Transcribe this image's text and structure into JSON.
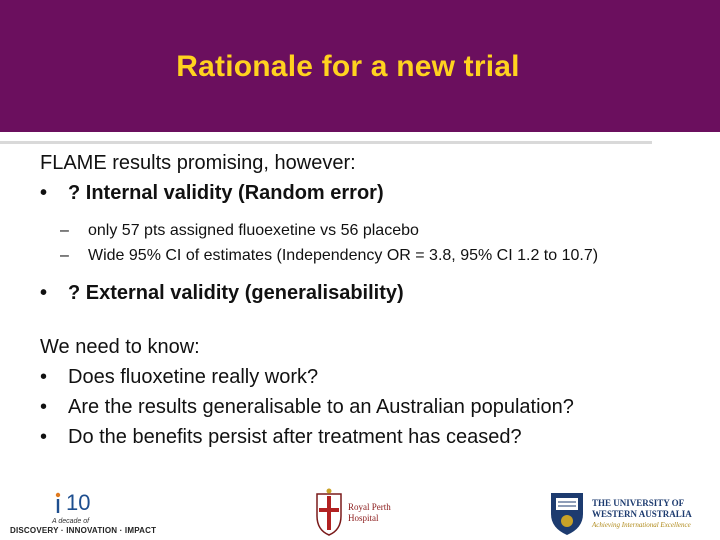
{
  "slide": {
    "title": "Rationale for a new trial",
    "colors": {
      "header_bg": "#6b0f5e",
      "title": "#ffd21f"
    },
    "intro": "FLAME results promising, however:",
    "bullet1": "? Internal validity (Random error)",
    "sub1": "only 57 pts assigned fluoexetine vs 56 placebo",
    "sub2": "Wide 95% CI of estimates (Independency OR = 3.8, 95% CI 1.2 to 10.7)",
    "bullet2": "? External validity (generalisability)",
    "need": "We need to know:",
    "q1": "Does fluoxetine really work?",
    "q2": "Are the results generalisable to an Australian population?",
    "q3": "Do the benefits persist after treatment has ceased?",
    "bullet_char": "•",
    "dash_char": "–"
  },
  "footer": {
    "logo10": {
      "number": "10",
      "small": "A decade of",
      "tagline": "DISCOVERY · INNOVATION · IMPACT"
    },
    "rph": {
      "line1": "Royal Perth",
      "line2": "Hospital"
    },
    "uwa": {
      "line1": "THE UNIVERSITY OF",
      "line2": "WESTERN AUSTRALIA",
      "line3": "Achieving International Excellence"
    }
  }
}
